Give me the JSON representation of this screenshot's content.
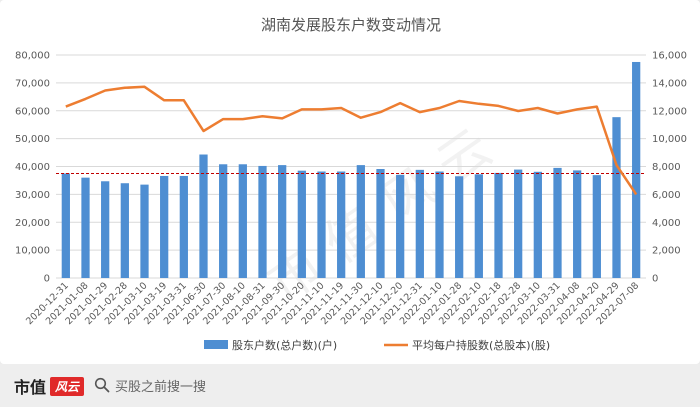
{
  "chart_data": {
    "type": "bar+line",
    "title": "湖南发展股东户数变动情况",
    "categories": [
      "2020-12-31",
      "2021-01-08",
      "2021-01-29",
      "2021-02-28",
      "2021-03-10",
      "2021-03-19",
      "2021-03-31",
      "2021-06-30",
      "2021-07-30",
      "2021-08-10",
      "2021-08-31",
      "2021-09-30",
      "2021-10-20",
      "2021-11-10",
      "2021-11-19",
      "2021-11-30",
      "2021-12-10",
      "2021-12-20",
      "2021-12-31",
      "2022-01-10",
      "2022-01-28",
      "2022-02-10",
      "2022-02-18",
      "2022-02-28",
      "2022-03-10",
      "2022-03-31",
      "2022-04-08",
      "2022-04-20",
      "2022-04-29",
      "2022-07-08"
    ],
    "series": [
      {
        "name": "股东户数(总户数)(户)",
        "type": "bar",
        "axis": "left",
        "color": "#4e8ed2",
        "values": [
          37500,
          36000,
          34700,
          34000,
          33500,
          36600,
          36600,
          44300,
          40800,
          40800,
          40200,
          40500,
          38500,
          38200,
          38200,
          40500,
          39100,
          37000,
          38800,
          38200,
          36500,
          37200,
          37700,
          38900,
          38100,
          39500,
          38600,
          36900,
          57700,
          77500
        ]
      },
      {
        "name": "平均每户持股数(总股本)(股)",
        "type": "line",
        "axis": "right",
        "color": "#ed7d31",
        "values": [
          12300,
          12850,
          13450,
          13650,
          13720,
          12750,
          12750,
          10550,
          11400,
          11400,
          11600,
          11450,
          12100,
          12100,
          12200,
          11500,
          11900,
          12550,
          11900,
          12200,
          12700,
          12500,
          12350,
          11980,
          12200,
          11800,
          12100,
          12300,
          8100,
          6000
        ]
      }
    ],
    "y_left": {
      "min": 0,
      "max": 80000,
      "ticks": [
        "0",
        "10,000",
        "20,000",
        "30,000",
        "40,000",
        "50,000",
        "60,000",
        "70,000",
        "80,000"
      ]
    },
    "y_right": {
      "min": 0,
      "max": 16000,
      "ticks": [
        "0",
        "2,000",
        "4,000",
        "6,000",
        "8,000",
        "10,000",
        "12,000",
        "14,000",
        "16,000"
      ]
    },
    "reference_line": {
      "axis": "right",
      "value": 7500,
      "color": "#c00000",
      "style": "dashed"
    },
    "grid": true,
    "legend_position": "bottom"
  },
  "watermark_text": "市 值 风 云",
  "footer": {
    "brand": "市值",
    "brand_mark": "风云",
    "search_placeholder": "买股之前搜一搜"
  }
}
